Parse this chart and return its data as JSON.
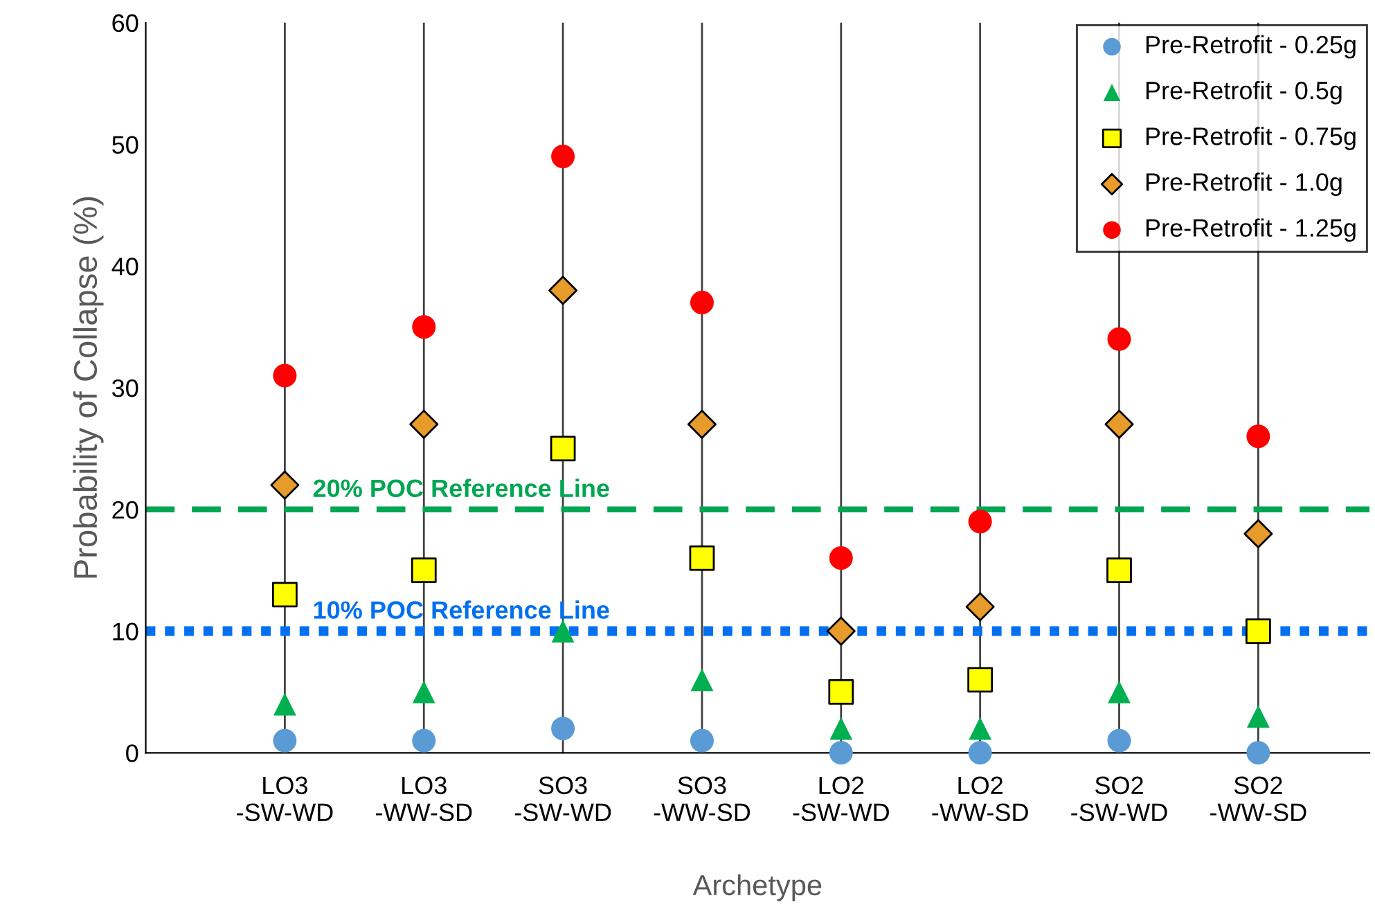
{
  "chart_data": {
    "type": "scatter",
    "xlabel": "Archetype",
    "ylabel": "Probability of Collapse (%)",
    "categories": [
      "LO3\n-SW-WD",
      "LO3\n-WW-SD",
      "SO3\n-SW-WD",
      "SO3\n-WW-SD",
      "LO2\n-SW-WD",
      "LO2\n-WW-SD",
      "SO2\n-SW-WD",
      "SO2\n-WW-SD"
    ],
    "series": [
      {
        "name": "Pre-Retrofit - 0.25g",
        "color": "#5b9bd5",
        "marker": "circle",
        "values": [
          1,
          1,
          2,
          1,
          0,
          0,
          1,
          0
        ]
      },
      {
        "name": "Pre-Retrofit - 0.5g",
        "color": "#00b050",
        "marker": "triangle",
        "values": [
          4,
          5,
          10,
          6,
          2,
          2,
          5,
          3
        ]
      },
      {
        "name": "Pre-Retrofit - 0.75g",
        "color": "#ffff00",
        "marker": "square",
        "values": [
          13,
          15,
          25,
          16,
          5,
          6,
          15,
          10
        ]
      },
      {
        "name": "Pre-Retrofit - 1.0g",
        "color": "#e69b2a",
        "marker": "diamond",
        "values": [
          22,
          27,
          38,
          27,
          10,
          12,
          27,
          18
        ]
      },
      {
        "name": "Pre-Retrofit - 1.25g",
        "color": "#ff0000",
        "marker": "circle",
        "values": [
          31,
          35,
          49,
          37,
          16,
          19,
          34,
          26
        ]
      }
    ],
    "ylim": [
      0,
      60
    ],
    "yticks": [
      0,
      10,
      20,
      30,
      40,
      50,
      60
    ],
    "ref_lines": [
      {
        "axis": "y",
        "value": 20,
        "label": "20% POC Reference Line",
        "color": "#00a651",
        "line_style": "dashed"
      },
      {
        "axis": "y",
        "value": 10,
        "label": "10% POC Reference Line",
        "color": "#0070f0",
        "line_style": "dotted"
      }
    ],
    "grid": "x",
    "legend": "top right"
  }
}
